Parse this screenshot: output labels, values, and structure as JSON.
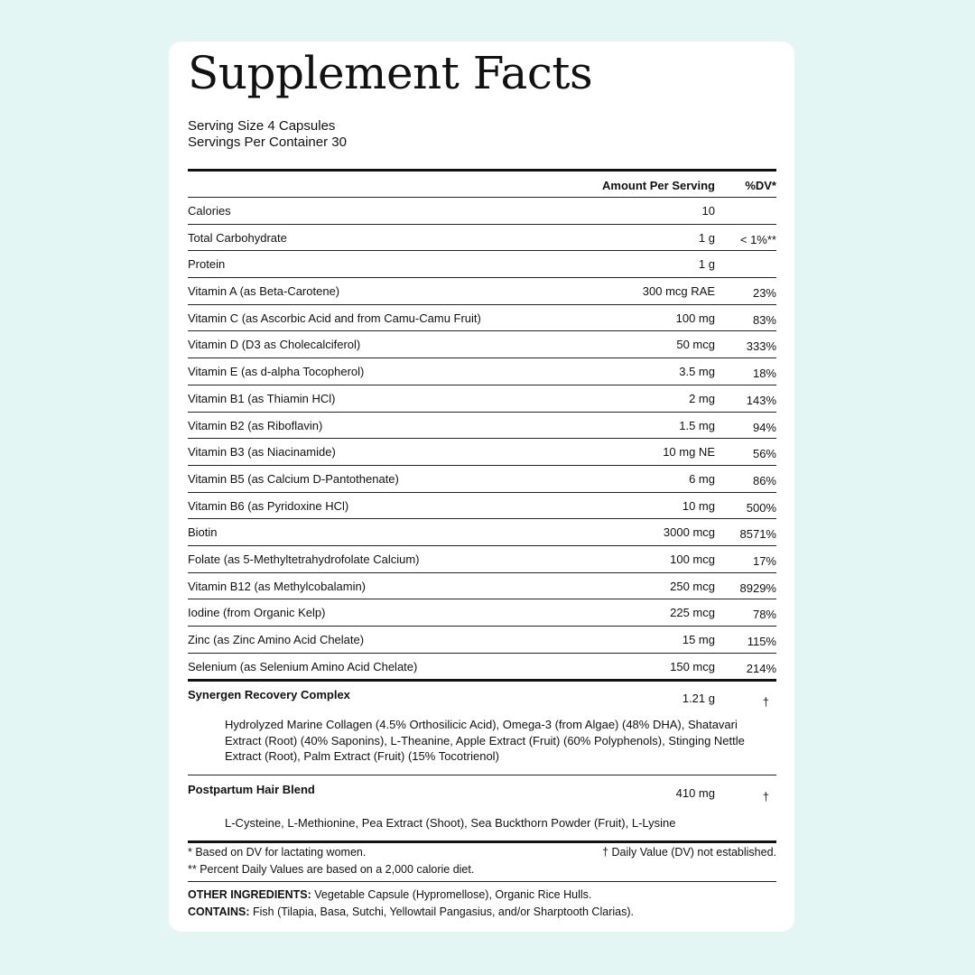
{
  "title": "Supplement Facts",
  "serving_size": "Serving Size 4 Capsules",
  "servings_per_container": "Servings Per Container 30",
  "header": {
    "amount": "Amount Per Serving",
    "dv": "%DV*"
  },
  "rows": [
    {
      "name": "Calories",
      "amount": "10",
      "dv": ""
    },
    {
      "name": "Total Carbohydrate",
      "amount": "1 g",
      "dv": "< 1%**"
    },
    {
      "name": "Protein",
      "amount": "1 g",
      "dv": ""
    },
    {
      "name": "Vitamin A (as Beta-Carotene)",
      "amount": "300 mcg RAE",
      "dv": "23%"
    },
    {
      "name": "Vitamin C (as Ascorbic Acid and from Camu-Camu Fruit)",
      "amount": "100 mg",
      "dv": "83%"
    },
    {
      "name": "Vitamin D (D3 as Cholecalciferol)",
      "amount": "50 mcg",
      "dv": "333%"
    },
    {
      "name": "Vitamin E (as d-alpha Tocopherol)",
      "amount": "3.5 mg",
      "dv": "18%"
    },
    {
      "name": "Vitamin B1 (as Thiamin HCl)",
      "amount": "2 mg",
      "dv": "143%"
    },
    {
      "name": "Vitamin B2 (as Riboflavin)",
      "amount": "1.5 mg",
      "dv": "94%"
    },
    {
      "name": "Vitamin B3 (as Niacinamide)",
      "amount": "10 mg NE",
      "dv": "56%"
    },
    {
      "name": "Vitamin B5 (as Calcium D-Pantothenate)",
      "amount": "6 mg",
      "dv": "86%"
    },
    {
      "name": "Vitamin B6 (as Pyridoxine HCl)",
      "amount": "10 mg",
      "dv": "500%"
    },
    {
      "name": "Biotin",
      "amount": "3000 mcg",
      "dv": "8571%"
    },
    {
      "name": "Folate (as 5-Methyltetrahydrofolate Calcium)",
      "amount": "100 mcg",
      "dv": "17%"
    },
    {
      "name": "Vitamin B12 (as Methylcobalamin)",
      "amount": "250 mcg",
      "dv": "8929%"
    },
    {
      "name": "Iodine (from Organic Kelp)",
      "amount": "225 mcg",
      "dv": "78%"
    },
    {
      "name": "Zinc (as Zinc Amino Acid Chelate)",
      "amount": "15 mg",
      "dv": "115%"
    },
    {
      "name": "Selenium (as Selenium Amino Acid Chelate)",
      "amount": "150 mcg",
      "dv": "214%"
    }
  ],
  "blends": [
    {
      "name": "Synergen Recovery Complex",
      "amount": "1.21 g",
      "dv": "†",
      "ingredients": "Hydrolyzed Marine Collagen (4.5% Orthosilicic Acid), Omega-3 (from Algae) (48% DHA), Shatavari Extract (Root) (40% Saponins), L-Theanine, Apple Extract (Fruit) (60% Polyphenols), Stinging Nettle Extract (Root), Palm Extract (Fruit) (15% Tocotrienol)"
    },
    {
      "name": "Postpartum Hair Blend",
      "amount": "410 mg",
      "dv": "†",
      "ingredients": "L-Cysteine, L-Methionine, Pea Extract (Shoot), Sea Buckthorn Powder (Fruit), L-Lysine"
    }
  ],
  "footnotes": {
    "dv_basis": "* Based on DV for lactating women.",
    "not_established": "† Daily Value (DV) not established.",
    "calorie_diet": "** Percent Daily Values are based on a 2,000 calorie diet."
  },
  "other_ingredients": {
    "label": "OTHER INGREDIENTS:",
    "text": " Vegetable Capsule (Hypromellose), Organic Rice Hulls."
  },
  "contains": {
    "label": "CONTAINS:",
    "text": " Fish (Tilapia, Basa, Sutchi, Yellowtail Pangasius, and/or Sharptooth Clarias)."
  },
  "colors": {
    "background": "#e3f6f3",
    "card": "#ffffff",
    "text": "#111111"
  }
}
